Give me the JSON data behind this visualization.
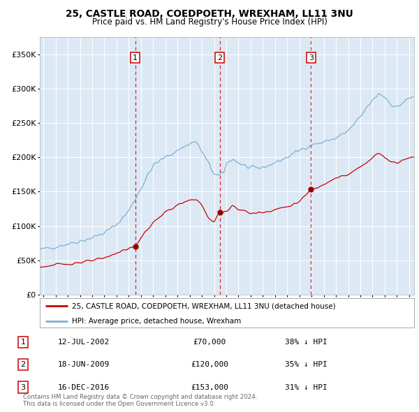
{
  "title1": "25, CASTLE ROAD, COEDPOETH, WREXHAM, LL11 3NU",
  "title2": "Price paid vs. HM Land Registry's House Price Index (HPI)",
  "legend_line1": "25, CASTLE ROAD, COEDPOETH, WREXHAM, LL11 3NU (detached house)",
  "legend_line2": "HPI: Average price, detached house, Wrexham",
  "transactions": [
    {
      "num": 1,
      "date_label": "12-JUL-2002",
      "date_x": 2002.53,
      "price": 70000,
      "pct": "38%",
      "dir": "↓"
    },
    {
      "num": 2,
      "date_label": "18-JUN-2009",
      "date_x": 2009.46,
      "price": 120000,
      "pct": "35%",
      "dir": "↓"
    },
    {
      "num": 3,
      "date_label": "16-DEC-2016",
      "date_x": 2016.96,
      "price": 153000,
      "pct": "31%",
      "dir": "↓"
    }
  ],
  "property_color": "#cc0000",
  "hpi_color": "#7ab0d4",
  "grid_color": "#ffffff",
  "plot_bg": "#dce9f5",
  "ylim": [
    0,
    375000
  ],
  "xlim_start": 1994.7,
  "xlim_end": 2025.4,
  "footer": "Contains HM Land Registry data © Crown copyright and database right 2024.\nThis data is licensed under the Open Government Licence v3.0."
}
